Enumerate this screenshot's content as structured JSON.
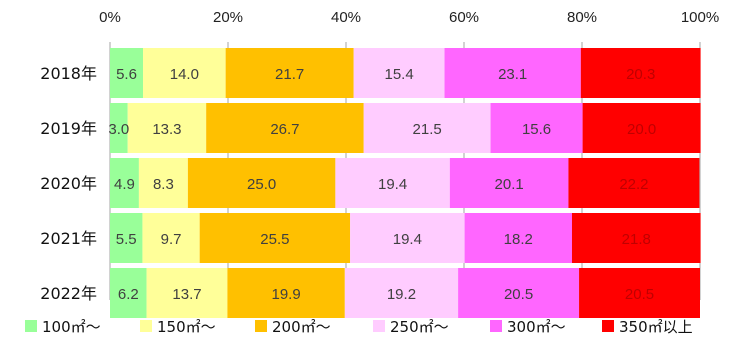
{
  "chart_data": {
    "type": "bar",
    "orientation": "horizontal",
    "stacked": "percent",
    "categories": [
      "2018年",
      "2019年",
      "2020年",
      "2021年",
      "2022年"
    ],
    "series": [
      {
        "name": "100㎡〜",
        "color": "#99FF99",
        "values": [
          5.6,
          3.0,
          4.9,
          5.5,
          6.2
        ]
      },
      {
        "name": "150㎡〜",
        "color": "#FFFF99",
        "values": [
          14.0,
          13.3,
          8.3,
          9.7,
          13.7
        ]
      },
      {
        "name": "200㎡〜",
        "color": "#FFC000",
        "values": [
          21.7,
          26.7,
          25.0,
          25.5,
          19.9
        ]
      },
      {
        "name": "250㎡〜",
        "color": "#FFCCFF",
        "values": [
          15.4,
          21.5,
          19.4,
          19.4,
          19.2
        ]
      },
      {
        "name": "300㎡〜",
        "color": "#FF66FF",
        "values": [
          23.1,
          15.6,
          20.1,
          18.2,
          20.5
        ]
      },
      {
        "name": "350㎡以上",
        "color": "#FF0000",
        "values": [
          20.3,
          20.0,
          22.2,
          21.8,
          20.5
        ]
      }
    ],
    "xaxis_ticks": [
      "0%",
      "20%",
      "40%",
      "60%",
      "80%",
      "100%"
    ],
    "xlim": [
      0,
      100
    ],
    "xaxis_position": "top",
    "grid": true,
    "legend_position": "bottom",
    "data_label_colors": [
      "#404040",
      "#404040",
      "#404040",
      "#404040",
      "#404040",
      "#C00000"
    ]
  }
}
